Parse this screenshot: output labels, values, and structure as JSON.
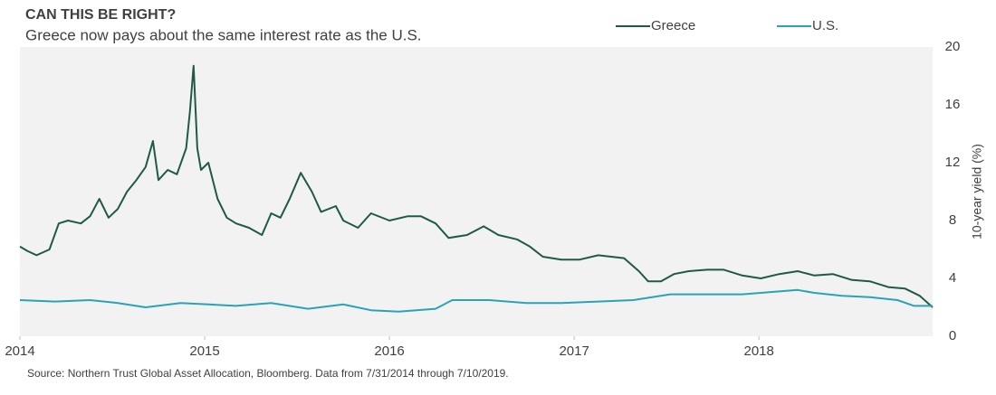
{
  "chart_data": {
    "type": "line",
    "title": "CAN THIS BE RIGHT?",
    "subtitle": "Greece now pays about the same interest rate as the U.S.",
    "y_label": "10-year yield (%)",
    "source": "Source: Northern Trust Global Asset Allocation, Bloomberg. Data from 7/31/2014 through 7/10/2019.",
    "xlim": [
      2014,
      2018.94
    ],
    "xticks": [
      2014,
      2015,
      2016,
      2017,
      2018
    ],
    "ylim": [
      0,
      20
    ],
    "yticks": [
      0,
      4,
      8,
      12,
      16,
      20
    ],
    "grid": false,
    "legend": "top",
    "series": [
      {
        "name": "Greece",
        "color": "#1f5a44",
        "x": [
          2014.0,
          2014.04,
          2014.09,
          2014.16,
          2014.21,
          2014.26,
          2014.33,
          2014.38,
          2014.43,
          2014.48,
          2014.53,
          2014.58,
          2014.63,
          2014.68,
          2014.72,
          2014.75,
          2014.8,
          2014.85,
          2014.9,
          2014.92,
          2014.94,
          2014.96,
          2014.98,
          2015.02,
          2015.07,
          2015.12,
          2015.17,
          2015.24,
          2015.31,
          2015.36,
          2015.41,
          2015.46,
          2015.52,
          2015.58,
          2015.63,
          2015.71,
          2015.75,
          2015.83,
          2015.9,
          2016.0,
          2016.1,
          2016.17,
          2016.25,
          2016.32,
          2016.42,
          2016.51,
          2016.59,
          2016.69,
          2016.76,
          2016.83,
          2016.93,
          2017.03,
          2017.13,
          2017.27,
          2017.35,
          2017.4,
          2017.47,
          2017.54,
          2017.62,
          2017.72,
          2017.81,
          2017.91,
          2018.01,
          2018.11,
          2018.21,
          2018.3,
          2018.4,
          2018.5,
          2018.6,
          2018.7,
          2018.79,
          2018.87,
          2018.94
        ],
        "values": [
          6.2,
          5.9,
          5.6,
          6.0,
          7.8,
          8.0,
          7.8,
          8.3,
          9.5,
          8.2,
          8.8,
          10.0,
          10.8,
          11.7,
          13.5,
          10.8,
          11.5,
          11.2,
          13.0,
          15.5,
          18.7,
          13.0,
          11.5,
          12.0,
          9.5,
          8.2,
          7.8,
          7.5,
          7.0,
          8.5,
          8.2,
          9.5,
          11.3,
          10.0,
          8.6,
          9.0,
          8.0,
          7.5,
          8.5,
          8.0,
          8.3,
          8.3,
          7.8,
          6.8,
          7.0,
          7.6,
          7.0,
          6.7,
          6.2,
          5.5,
          5.3,
          5.3,
          5.6,
          5.4,
          4.5,
          3.8,
          3.8,
          4.3,
          4.5,
          4.6,
          4.6,
          4.2,
          4.0,
          4.3,
          4.5,
          4.2,
          4.3,
          3.9,
          3.8,
          3.4,
          3.3,
          2.8,
          2.0
        ]
      },
      {
        "name": "U.S.",
        "color": "#2ba3b6",
        "x": [
          2014.0,
          2014.19,
          2014.38,
          2014.53,
          2014.68,
          2014.87,
          2015.02,
          2015.17,
          2015.36,
          2015.56,
          2015.75,
          2015.9,
          2016.05,
          2016.25,
          2016.34,
          2016.54,
          2016.74,
          2016.93,
          2017.13,
          2017.32,
          2017.52,
          2017.72,
          2017.91,
          2018.11,
          2018.21,
          2018.3,
          2018.45,
          2018.6,
          2018.75,
          2018.84,
          2018.94
        ],
        "values": [
          2.5,
          2.4,
          2.5,
          2.3,
          2.0,
          2.3,
          2.2,
          2.1,
          2.3,
          1.9,
          2.2,
          1.8,
          1.7,
          1.9,
          2.5,
          2.5,
          2.3,
          2.3,
          2.4,
          2.5,
          2.9,
          2.9,
          2.9,
          3.1,
          3.2,
          3.0,
          2.8,
          2.7,
          2.5,
          2.1,
          2.1
        ]
      }
    ]
  }
}
